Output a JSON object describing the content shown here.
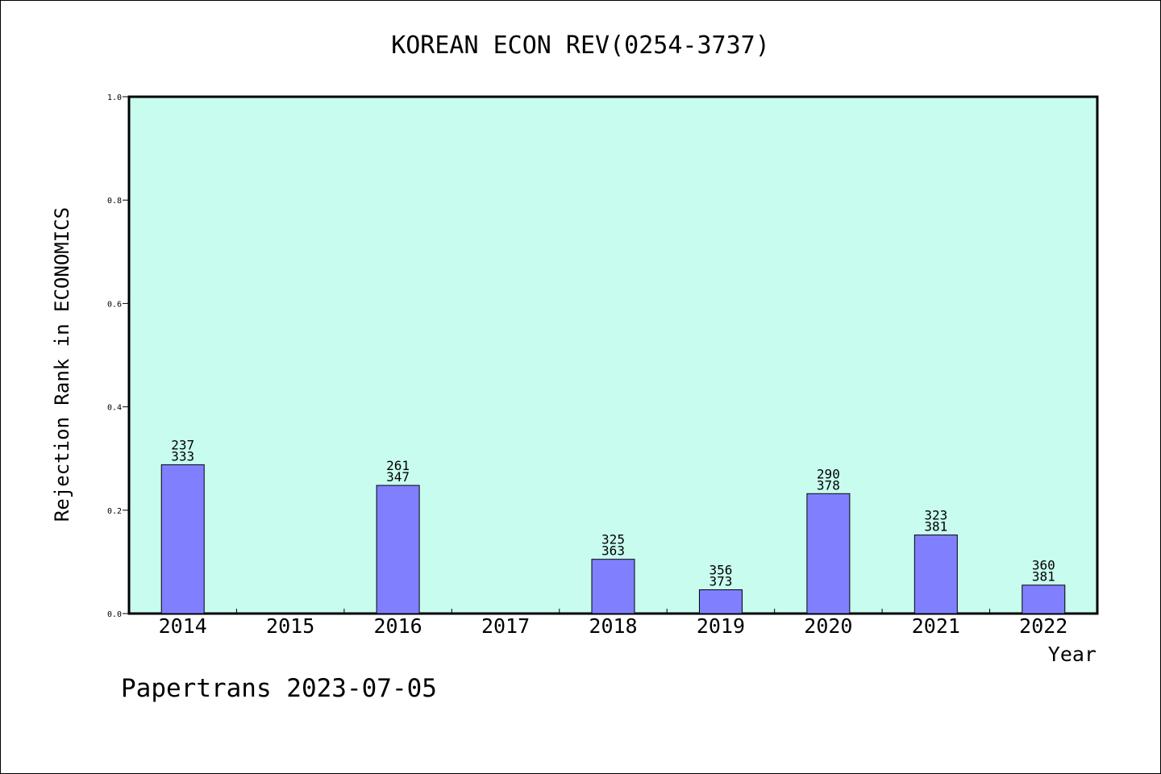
{
  "chart_data": {
    "type": "bar",
    "title": "KOREAN ECON REV(0254-3737)",
    "xlabel": "Year",
    "ylabel": "Rejection Rank in ECONOMICS",
    "categories": [
      "2014",
      "2015",
      "2016",
      "2017",
      "2018",
      "2019",
      "2020",
      "2021",
      "2022"
    ],
    "values": [
      0.288,
      null,
      0.248,
      null,
      0.105,
      0.046,
      0.232,
      0.152,
      0.055
    ],
    "bar_labels": [
      [
        "237",
        "333"
      ],
      null,
      [
        "261",
        "347"
      ],
      null,
      [
        "325",
        "363"
      ],
      [
        "356",
        "373"
      ],
      [
        "290",
        "378"
      ],
      [
        "323",
        "381"
      ],
      [
        "360",
        "381"
      ]
    ],
    "ylim": [
      0,
      1.0
    ],
    "yticks": [
      "0.0",
      "0.2",
      "0.4",
      "0.6",
      "0.8",
      "1.0"
    ],
    "grid": false,
    "colors": {
      "plot_background": "#c8fcee",
      "bar_fill": "#8080ff",
      "bar_stroke": "#000000"
    }
  },
  "footer": {
    "text": "Papertrans 2023-07-05"
  }
}
